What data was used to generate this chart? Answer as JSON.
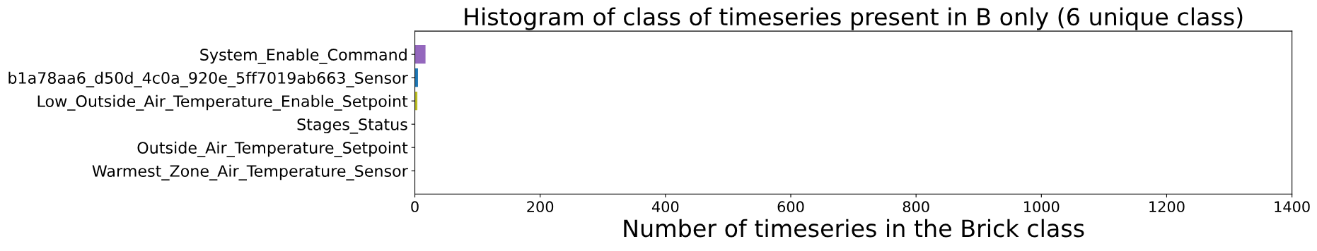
{
  "chart_data": {
    "type": "bar",
    "orientation": "horizontal",
    "title": "Histogram of class of timeseries present in B only (6 unique class)",
    "xlabel": "Number of timeseries in the Brick class",
    "categories": [
      "System_Enable_Command",
      "b1a78aa6_d50d_4c0a_920e_5ff7019ab663_Sensor",
      "Low_Outside_Air_Temperature_Enable_Setpoint",
      "Stages_Status",
      "Outside_Air_Temperature_Setpoint",
      "Warmest_Zone_Air_Temperature_Sensor"
    ],
    "values": [
      17,
      5,
      4,
      null,
      null,
      null
    ],
    "colors": [
      "#9467bd",
      "#1f77b4",
      "#bcbd22",
      "#2ca02c",
      "#d62728",
      "#8c564b"
    ],
    "xlim": [
      0,
      1400
    ],
    "xticks": [
      0,
      200,
      400,
      600,
      800,
      1000,
      1200,
      1400
    ],
    "grid": false,
    "legend": false
  }
}
